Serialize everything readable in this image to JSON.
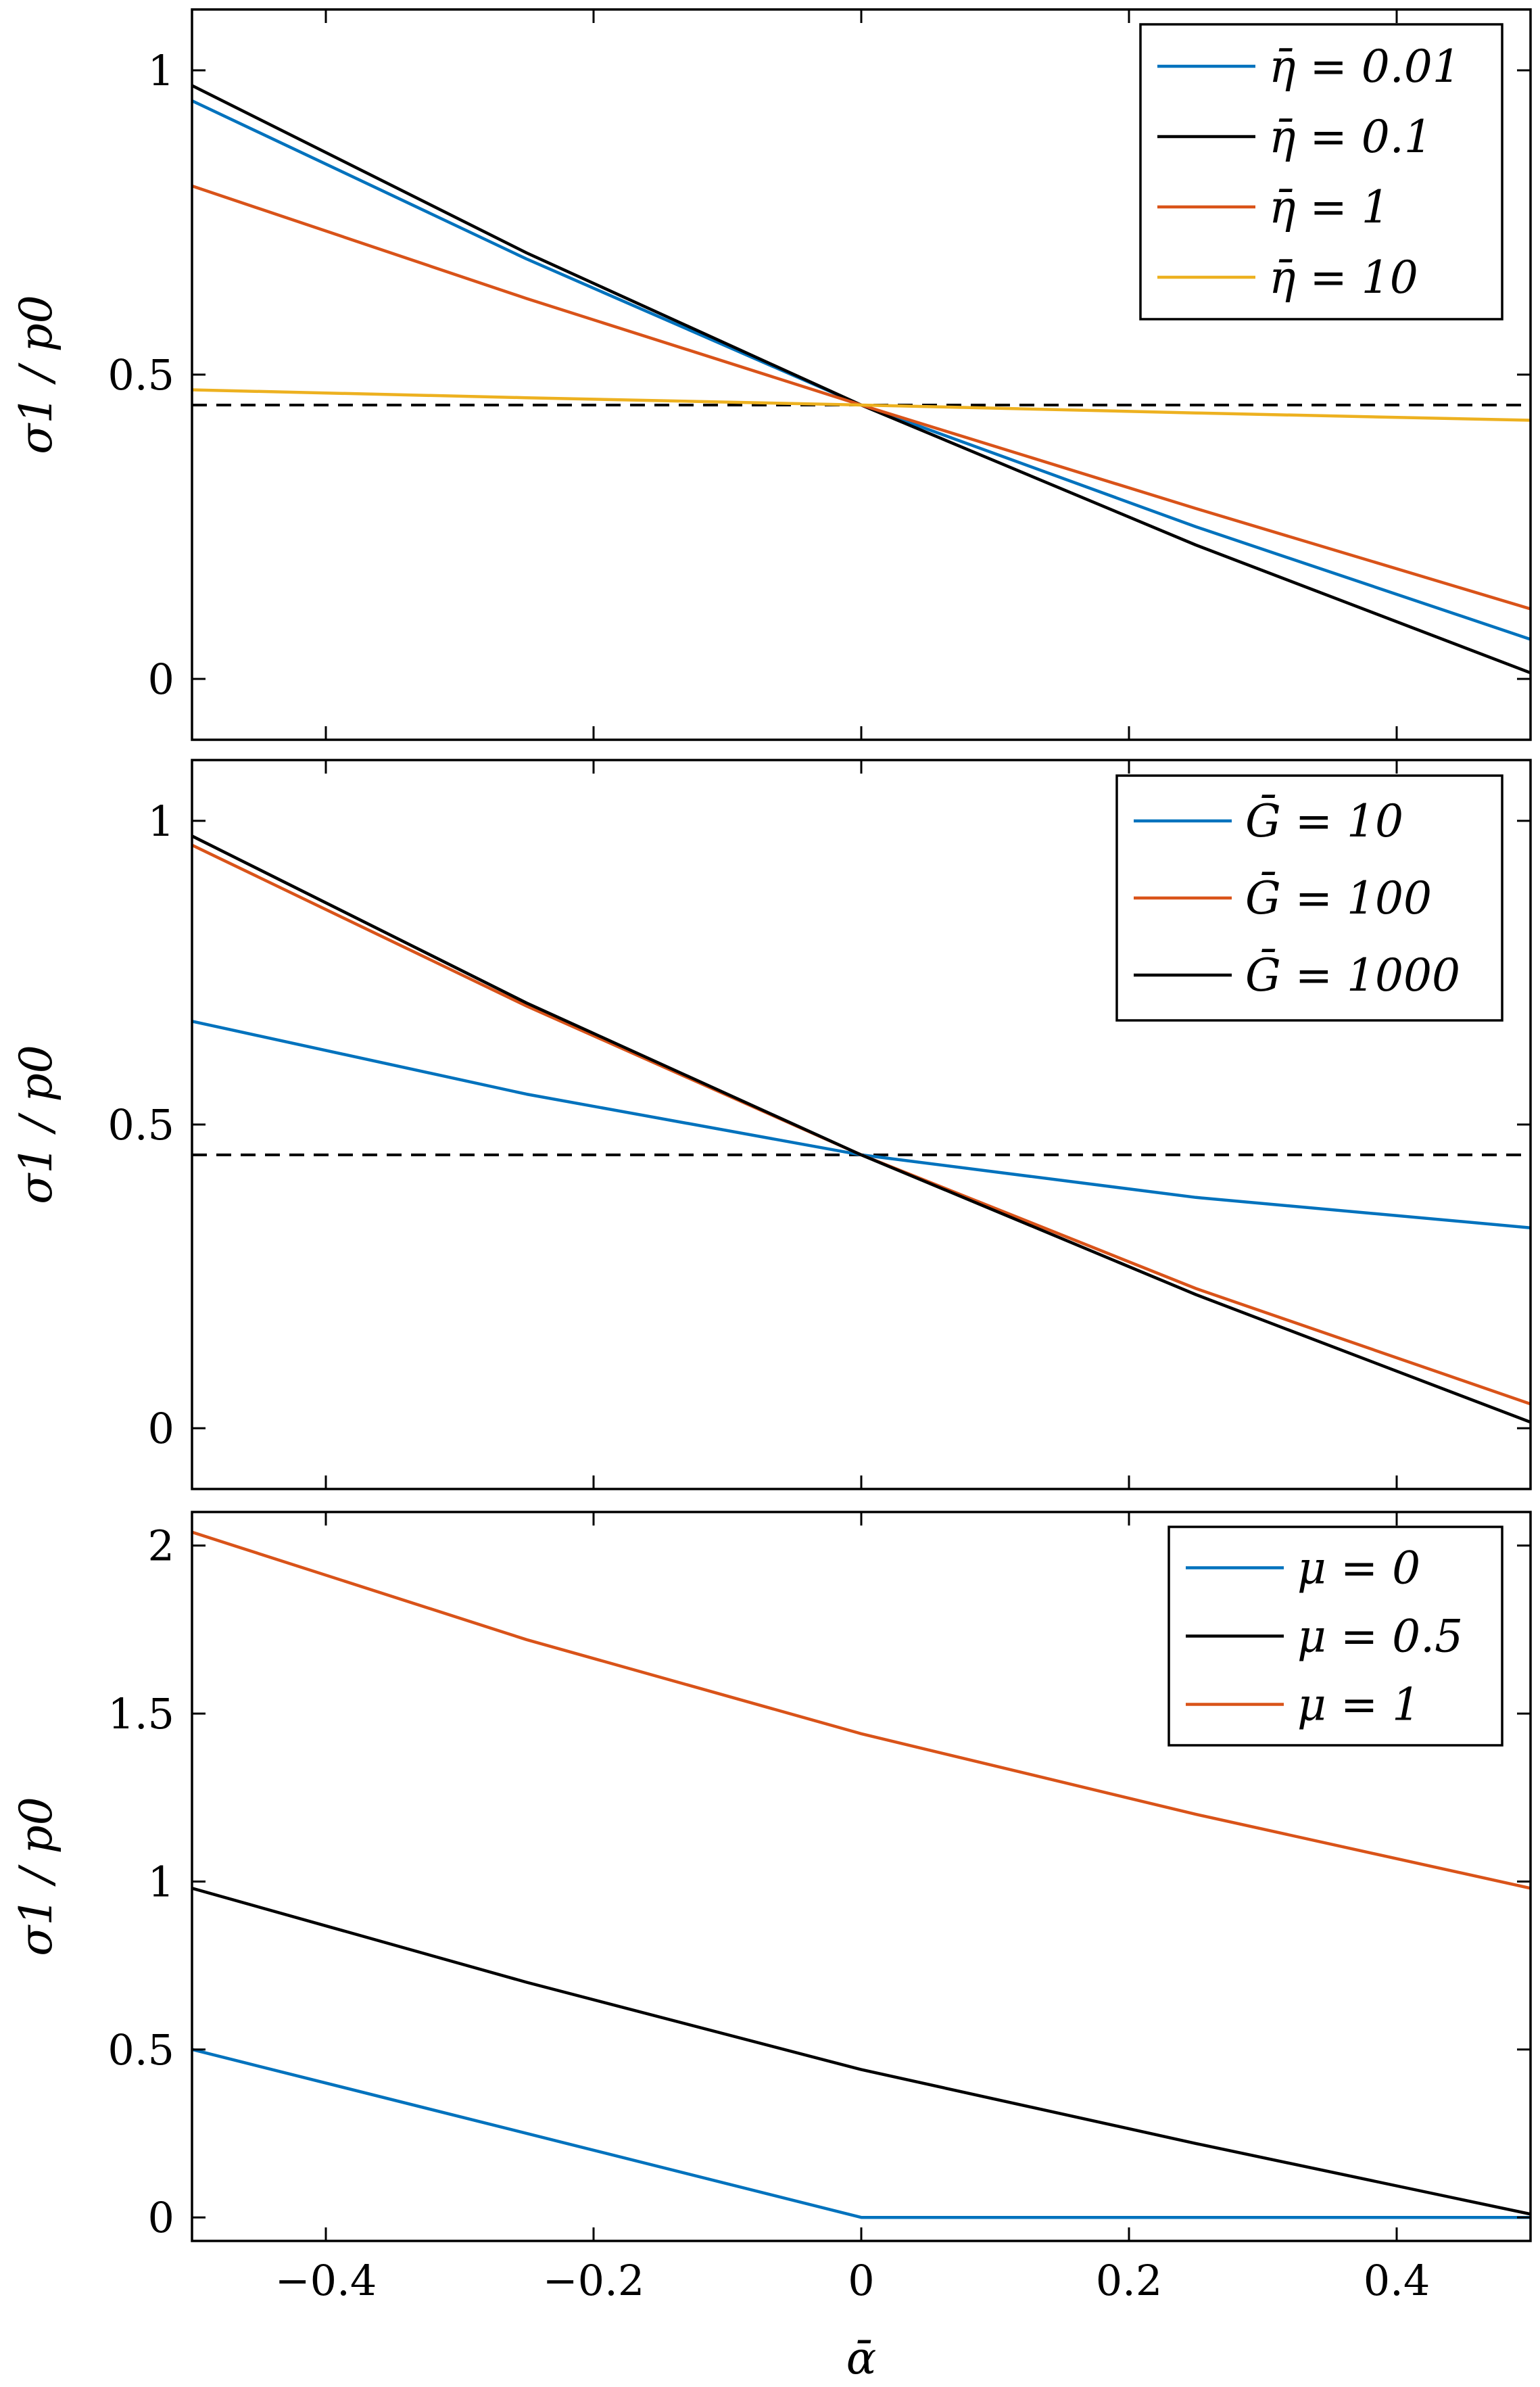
{
  "chart_data": [
    {
      "type": "line",
      "xlim": [
        -0.5,
        0.5
      ],
      "ylim": [
        -0.1,
        1.1
      ],
      "yticks": [
        0,
        0.5,
        1
      ],
      "ytick_labels": [
        "0",
        "0.5",
        "1"
      ],
      "xticks": [
        -0.4,
        -0.2,
        0,
        0.2,
        0.4
      ],
      "xtick_labels": [],
      "xlabel": "",
      "ylabel": "σ1 / p0",
      "grid": false,
      "legend_position": "top-right",
      "reference_line": {
        "y": 0.45,
        "style": "dashed",
        "color": "#000000"
      },
      "series": [
        {
          "name": "η̄ = 0.01",
          "color": "#0072BD",
          "x": [
            -0.5,
            -0.25,
            0,
            0.25,
            0.5
          ],
          "y": [
            0.95,
            0.69,
            0.45,
            0.25,
            0.065
          ]
        },
        {
          "name": "η̄ = 0.1",
          "color": "#000000",
          "x": [
            -0.5,
            -0.25,
            0,
            0.25,
            0.5
          ],
          "y": [
            0.975,
            0.7,
            0.45,
            0.22,
            0.01
          ]
        },
        {
          "name": "η̄ = 1",
          "color": "#D95319",
          "x": [
            -0.5,
            -0.25,
            0,
            0.25,
            0.5
          ],
          "y": [
            0.81,
            0.625,
            0.45,
            0.28,
            0.115
          ]
        },
        {
          "name": "η̄ = 10",
          "color": "#EDB120",
          "x": [
            -0.5,
            -0.25,
            0,
            0.25,
            0.5
          ],
          "y": [
            0.475,
            0.462,
            0.45,
            0.437,
            0.425
          ]
        }
      ]
    },
    {
      "type": "line",
      "xlim": [
        -0.5,
        0.5
      ],
      "ylim": [
        -0.1,
        1.1
      ],
      "yticks": [
        0,
        0.5,
        1
      ],
      "ytick_labels": [
        "0",
        "0.5",
        "1"
      ],
      "xticks": [
        -0.4,
        -0.2,
        0,
        0.2,
        0.4
      ],
      "xtick_labels": [],
      "xlabel": "",
      "ylabel": "σ1 / p0",
      "grid": false,
      "legend_position": "top-right",
      "reference_line": {
        "y": 0.45,
        "style": "dashed",
        "color": "#000000"
      },
      "series": [
        {
          "name": "Ḡ = 10",
          "color": "#0072BD",
          "x": [
            -0.5,
            -0.25,
            0,
            0.25,
            0.5
          ],
          "y": [
            0.67,
            0.55,
            0.45,
            0.38,
            0.33
          ]
        },
        {
          "name": "Ḡ = 100",
          "color": "#D95319",
          "x": [
            -0.5,
            -0.25,
            0,
            0.25,
            0.5
          ],
          "y": [
            0.96,
            0.695,
            0.45,
            0.23,
            0.04
          ]
        },
        {
          "name": "Ḡ = 1000",
          "color": "#000000",
          "x": [
            -0.5,
            -0.25,
            0,
            0.25,
            0.5
          ],
          "y": [
            0.975,
            0.7,
            0.45,
            0.22,
            0.01
          ]
        }
      ]
    },
    {
      "type": "line",
      "xlim": [
        -0.5,
        0.5
      ],
      "ylim": [
        -0.07,
        2.1
      ],
      "yticks": [
        0,
        0.5,
        1,
        1.5,
        2
      ],
      "ytick_labels": [
        "0",
        "0.5",
        "1",
        "1.5",
        "2"
      ],
      "xticks": [
        -0.4,
        -0.2,
        0,
        0.2,
        0.4
      ],
      "xtick_labels": [
        "−0.4",
        "−0.2",
        "0",
        "0.2",
        "0.4"
      ],
      "xlabel": "ᾱ",
      "ylabel": "σ1 / p0",
      "grid": false,
      "legend_position": "top-right",
      "series": [
        {
          "name": "μ = 0",
          "color": "#0072BD",
          "x": [
            -0.5,
            0,
            0.5
          ],
          "y": [
            0.5,
            0,
            0
          ]
        },
        {
          "name": "μ = 0.5",
          "color": "#000000",
          "x": [
            -0.5,
            -0.25,
            0,
            0.25,
            0.5
          ],
          "y": [
            0.98,
            0.7,
            0.44,
            0.22,
            0.01
          ]
        },
        {
          "name": "μ = 1",
          "color": "#D95319",
          "x": [
            -0.5,
            -0.25,
            0,
            0.25,
            0.5
          ],
          "y": [
            2.04,
            1.72,
            1.44,
            1.2,
            0.98
          ]
        }
      ]
    }
  ]
}
